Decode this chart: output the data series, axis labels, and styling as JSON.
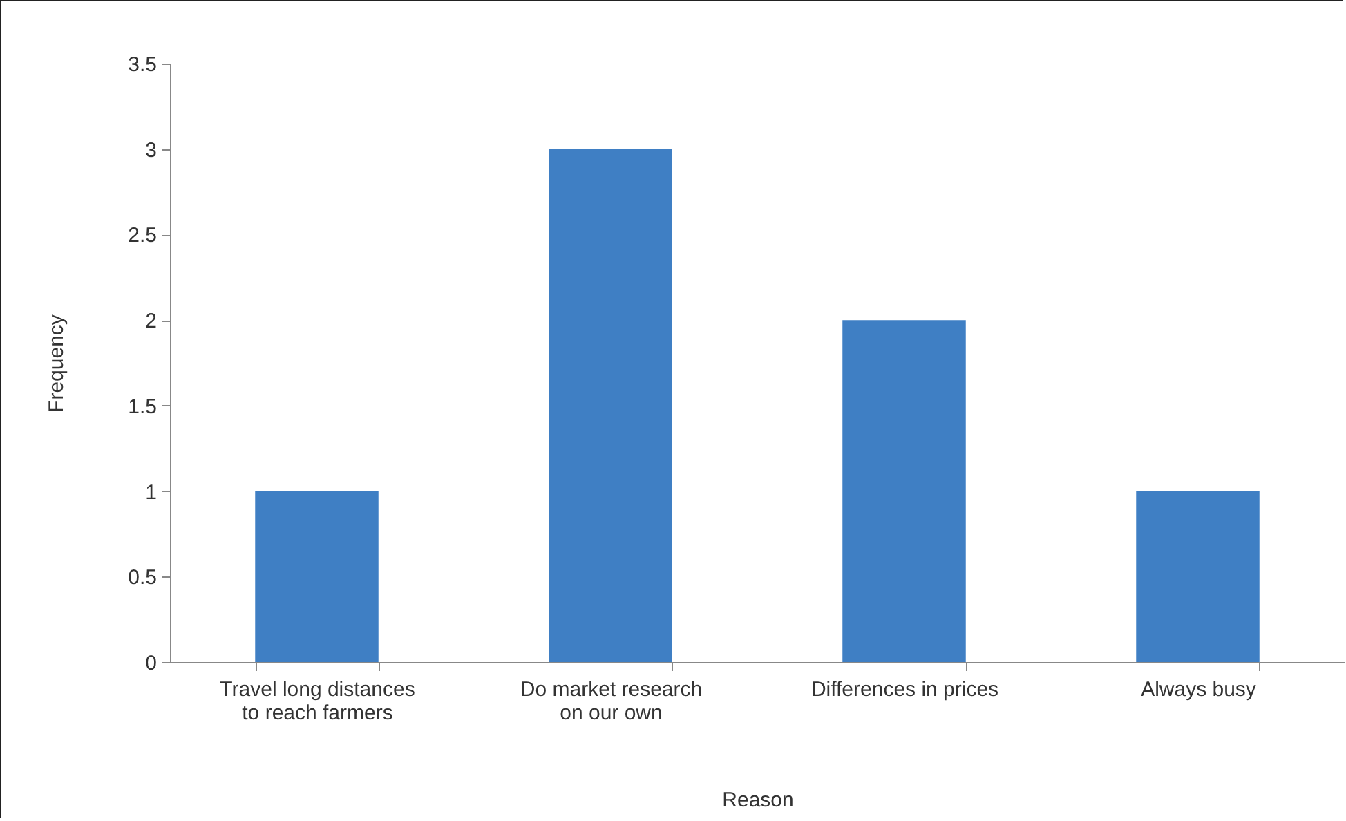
{
  "chart_data": {
    "type": "bar",
    "xlabel": "Reason",
    "ylabel": "Frequency",
    "categories": [
      "Travel long distances to reach farmers",
      "Do market research on our own",
      "Differences in prices",
      "Always busy"
    ],
    "values": [
      1,
      3,
      2,
      1
    ],
    "color": "#3f7fc4",
    "ylim": [
      0,
      3.5
    ],
    "yticks": [
      0,
      0.5,
      1,
      1.5,
      2,
      2.5,
      3,
      3.5
    ],
    "grid": false
  }
}
